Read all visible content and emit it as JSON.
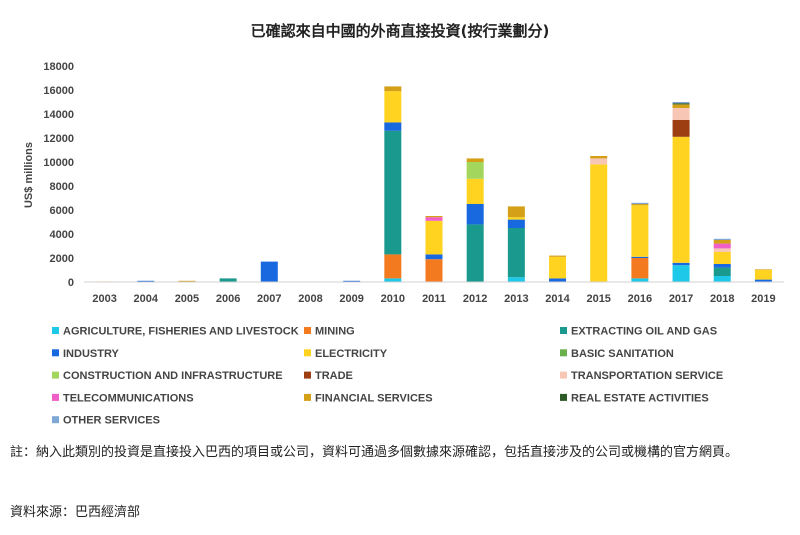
{
  "chart_data": {
    "type": "bar",
    "stacked": true,
    "title": "已確認來自中國的外商直接投資(按行業劃分)",
    "ylabel": "US$ millions",
    "xlabel": "",
    "ylim": [
      0,
      18000
    ],
    "yticks": [
      0,
      2000,
      4000,
      6000,
      8000,
      10000,
      12000,
      14000,
      16000,
      18000
    ],
    "grid": false,
    "legend_position": "bottom",
    "categories": [
      "2003",
      "2004",
      "2005",
      "2006",
      "2007",
      "2008",
      "2009",
      "2010",
      "2011",
      "2012",
      "2013",
      "2014",
      "2015",
      "2016",
      "2017",
      "2018",
      "2019"
    ],
    "series": [
      {
        "name": "AGRICULTURE, FISHERIES AND LIVESTOCK",
        "color": "#1ec8e8",
        "values": [
          0,
          0,
          0,
          0,
          0,
          0,
          0,
          300,
          0,
          0,
          400,
          0,
          0,
          300,
          1400,
          500,
          0
        ]
      },
      {
        "name": "MINING",
        "color": "#f47a1f",
        "values": [
          0,
          0,
          0,
          0,
          0,
          0,
          0,
          2000,
          1900,
          0,
          0,
          0,
          0,
          1700,
          0,
          0,
          0
        ]
      },
      {
        "name": "EXTRACTING OIL AND GAS",
        "color": "#1a9a8e",
        "values": [
          0,
          0,
          0,
          300,
          0,
          0,
          0,
          10300,
          0,
          4800,
          4100,
          0,
          0,
          0,
          0,
          700,
          0
        ]
      },
      {
        "name": "INDUSTRY",
        "color": "#1868e0",
        "values": [
          0,
          100,
          0,
          0,
          1700,
          0,
          100,
          700,
          400,
          1700,
          700,
          300,
          0,
          100,
          200,
          300,
          200
        ]
      },
      {
        "name": "ELECTRICITY",
        "color": "#ffd320",
        "values": [
          50,
          0,
          0,
          0,
          0,
          0,
          0,
          2600,
          2800,
          2100,
          200,
          1800,
          9800,
          4300,
          10500,
          1000,
          800
        ]
      },
      {
        "name": "BASIC SANITATION",
        "color": "#6ab04c",
        "values": [
          0,
          0,
          0,
          0,
          0,
          0,
          0,
          0,
          0,
          0,
          0,
          0,
          0,
          0,
          0,
          0,
          0
        ]
      },
      {
        "name": "CONSTRUCTION AND INFRASTRUCTURE",
        "color": "#a3d65c",
        "values": [
          0,
          0,
          0,
          0,
          0,
          0,
          0,
          0,
          0,
          1400,
          0,
          0,
          0,
          0,
          0,
          0,
          0
        ]
      },
      {
        "name": "TRADE",
        "color": "#9c3d12",
        "values": [
          0,
          0,
          0,
          0,
          0,
          0,
          0,
          0,
          0,
          0,
          0,
          0,
          0,
          0,
          1400,
          0,
          0
        ]
      },
      {
        "name": "TRANSPORTATION SERVICE",
        "color": "#f8c6b4",
        "values": [
          0,
          0,
          0,
          0,
          0,
          0,
          0,
          0,
          0,
          0,
          0,
          0,
          500,
          0,
          1000,
          300,
          0
        ]
      },
      {
        "name": "TELECOMMUNICATIONS",
        "color": "#f25ec8",
        "values": [
          0,
          0,
          0,
          0,
          0,
          0,
          0,
          0,
          300,
          0,
          0,
          0,
          0,
          0,
          0,
          400,
          0
        ]
      },
      {
        "name": "FINANCIAL SERVICES",
        "color": "#d4a017",
        "values": [
          0,
          0,
          100,
          0,
          0,
          0,
          0,
          400,
          100,
          300,
          900,
          100,
          200,
          100,
          300,
          300,
          50
        ]
      },
      {
        "name": "REAL ESTATE ACTIVITIES",
        "color": "#2d5a27",
        "values": [
          0,
          0,
          0,
          0,
          0,
          0,
          0,
          0,
          0,
          0,
          0,
          0,
          0,
          0,
          100,
          0,
          0
        ]
      },
      {
        "name": "OTHER SERVICES",
        "color": "#7fa7d6",
        "values": [
          0,
          0,
          0,
          0,
          0,
          0,
          0,
          0,
          0,
          0,
          0,
          0,
          0,
          100,
          100,
          100,
          0
        ]
      }
    ]
  },
  "notes": {
    "note": "註：納入此類別的投資是直接投入巴西的項目或公司，資料可通過多個數據來源確認，包括直接涉及的公司或機構的官方網頁。",
    "source": "資料來源：巴西經濟部"
  }
}
